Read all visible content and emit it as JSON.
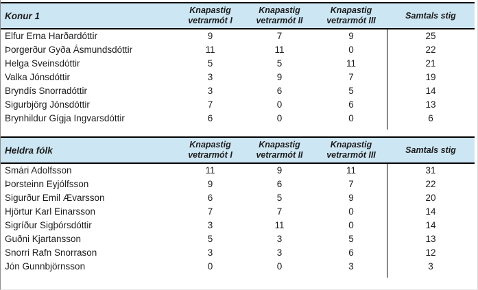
{
  "colors": {
    "header_background": "#cde6f4",
    "table_border": "#000000",
    "text": "#1c1c1c",
    "sheet_edge_gray": "#8c8c8c"
  },
  "tables": [
    {
      "title": "Konur 1",
      "columns": [
        "Knapastig vetrarmót I",
        "Knapastig vetrarmót II",
        "Knapastig vetrarmót III",
        "Samtals stig"
      ],
      "rows": [
        {
          "name": "Elfur Erna Harðardóttir",
          "scores": [
            9,
            7,
            9
          ],
          "total": 25
        },
        {
          "name": "Þorgerður Gyða Ásmundsdóttir",
          "scores": [
            11,
            11,
            0
          ],
          "total": 22
        },
        {
          "name": "Helga Sveinsdóttir",
          "scores": [
            5,
            5,
            11
          ],
          "total": 21
        },
        {
          "name": "Valka Jónsdóttir",
          "scores": [
            3,
            9,
            7
          ],
          "total": 19
        },
        {
          "name": "Bryndís Snorradóttir",
          "scores": [
            3,
            6,
            5
          ],
          "total": 14
        },
        {
          "name": "Sigurbjörg Jónsdóttir",
          "scores": [
            7,
            0,
            6
          ],
          "total": 13
        },
        {
          "name": "Brynhildur Gígja Ingvarsdóttir",
          "scores": [
            6,
            0,
            0
          ],
          "total": 6
        }
      ]
    },
    {
      "title": "Heldra fólk",
      "columns": [
        "Knapastig vetrarmót I",
        "Knapastig vetrarmót II",
        "Knapastig vetrarmót III",
        "Samtals stig"
      ],
      "rows": [
        {
          "name": "Smári Adolfsson",
          "scores": [
            11,
            9,
            11
          ],
          "total": 31
        },
        {
          "name": "Þorsteinn Eyjólfsson",
          "scores": [
            9,
            6,
            7
          ],
          "total": 22
        },
        {
          "name": "Sigurður Emil Ævarsson",
          "scores": [
            6,
            5,
            9
          ],
          "total": 20
        },
        {
          "name": "Hjörtur Karl Einarsson",
          "scores": [
            7,
            7,
            0
          ],
          "total": 14
        },
        {
          "name": "Sigríður Sigþórsdóttir",
          "scores": [
            3,
            11,
            0
          ],
          "total": 14
        },
        {
          "name": "Guðni Kjartansson",
          "scores": [
            5,
            3,
            5
          ],
          "total": 13
        },
        {
          "name": "Snorri Rafn Snorrason",
          "scores": [
            3,
            3,
            6
          ],
          "total": 12
        },
        {
          "name": "Jón Gunnbjörnsson",
          "scores": [
            0,
            0,
            3
          ],
          "total": 3
        }
      ]
    }
  ]
}
